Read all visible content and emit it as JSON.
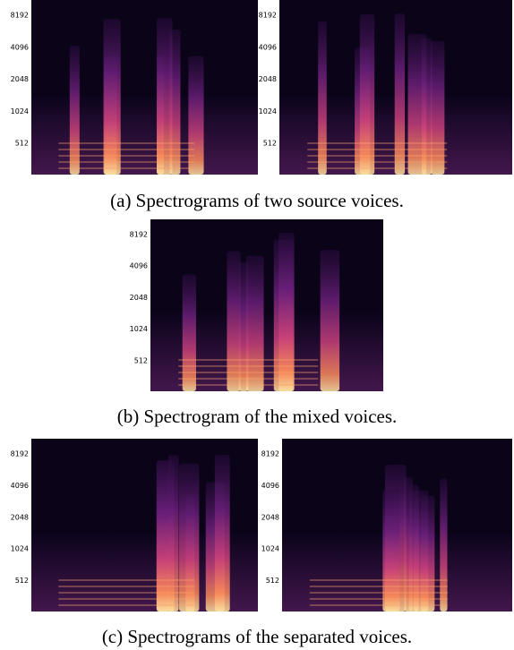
{
  "panels": [
    {
      "yticks": [
        "8192",
        "4096",
        "2048",
        "1024",
        "512"
      ]
    },
    {
      "yticks": [
        "8192",
        "4096",
        "2048",
        "1024",
        "512"
      ]
    },
    {
      "yticks": [
        "8192",
        "4096",
        "2048",
        "1024",
        "512"
      ]
    },
    {
      "yticks": [
        "8192",
        "4096",
        "2048",
        "1024",
        "512"
      ]
    },
    {
      "yticks": [
        "8192",
        "4096",
        "2048",
        "1024",
        "512"
      ]
    }
  ],
  "captions": [
    "(a) Spectrograms of two source voices.",
    "(b) Spectrogram of the mixed voices.",
    "(c) Spectrograms of the separated voices."
  ]
}
